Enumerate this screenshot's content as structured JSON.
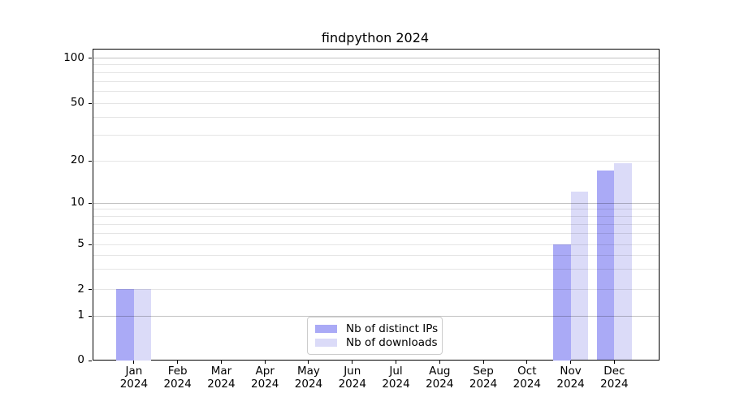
{
  "chart_data": {
    "type": "bar",
    "title": "findpython 2024",
    "categories": [
      "Jan 2024",
      "Feb 2024",
      "Mar 2024",
      "Apr 2024",
      "May 2024",
      "Jun 2024",
      "Jul 2024",
      "Aug 2024",
      "Sep 2024",
      "Oct 2024",
      "Nov 2024",
      "Dec 2024"
    ],
    "x_tick_month": [
      "Jan",
      "Feb",
      "Mar",
      "Apr",
      "May",
      "Jun",
      "Jul",
      "Aug",
      "Sep",
      "Oct",
      "Nov",
      "Dec"
    ],
    "x_tick_year": "2024",
    "series": [
      {
        "name": "Nb of distinct IPs",
        "color": "#aaaaf6",
        "values": [
          2,
          0,
          0,
          0,
          0,
          0,
          0,
          0,
          0,
          0,
          5,
          17
        ]
      },
      {
        "name": "Nb of downloads",
        "color": "#dbdbf8",
        "values": [
          2,
          0,
          0,
          0,
          0,
          0,
          0,
          0,
          0,
          0,
          12,
          19
        ]
      }
    ],
    "yscale": "symlog",
    "ylim": [
      0,
      110
    ],
    "yticks": [
      0,
      1,
      2,
      5,
      10,
      20,
      50,
      100
    ],
    "major_gridlines": [
      1,
      10,
      100
    ],
    "minor_gridlines": [
      2,
      3,
      4,
      5,
      6,
      7,
      8,
      9,
      20,
      30,
      40,
      50,
      60,
      70,
      80,
      90
    ],
    "grid": true,
    "legend_position": "lower center",
    "colors": {
      "major_grid": "#c2c2c2",
      "minor_grid": "#e6e6e6",
      "spine": "#000000",
      "background": "#ffffff"
    }
  }
}
